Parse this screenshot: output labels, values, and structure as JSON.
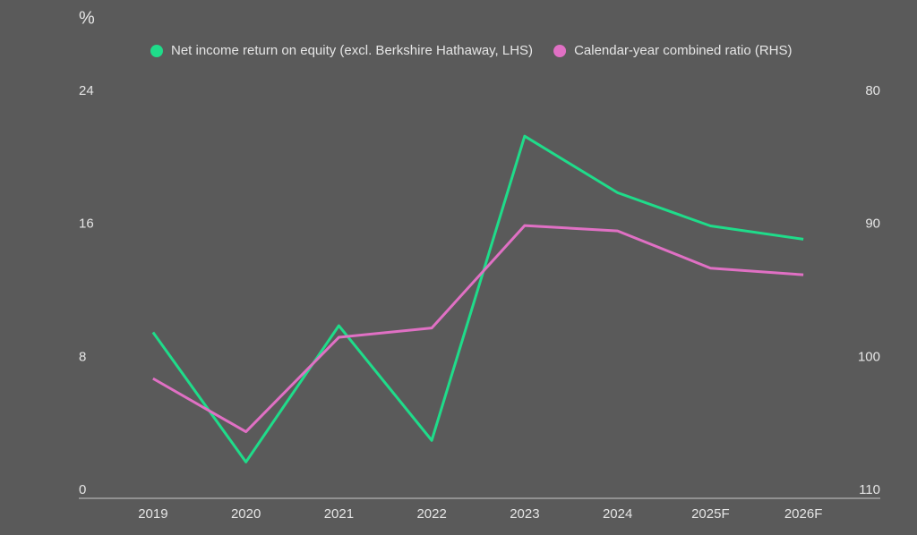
{
  "chart_data": {
    "type": "line",
    "title": "%",
    "categories": [
      "2019",
      "2020",
      "2021",
      "2022",
      "2023",
      "2024",
      "2025F",
      "2026F"
    ],
    "series": [
      {
        "name": "Net income return on equity (excl. Berkshire Hathaway, LHS)",
        "color": "#1fdc8a",
        "values": [
          9.5,
          1.7,
          9.9,
          3.0,
          21.3,
          17.9,
          15.9,
          15.1
        ]
      },
      {
        "name": "Calendar-year combined ratio (RHS)",
        "color": "#e070c4",
        "axis": "y2",
        "values": [
          101.6,
          105.6,
          98.5,
          97.8,
          90.1,
          90.5,
          93.3,
          93.8
        ]
      }
    ],
    "ylim": [
      0,
      24
    ],
    "yticks": [
      0,
      8,
      16,
      24
    ],
    "y2lim": [
      110,
      80
    ],
    "y2ticks": [
      110,
      100,
      90,
      80
    ],
    "grid": false
  }
}
